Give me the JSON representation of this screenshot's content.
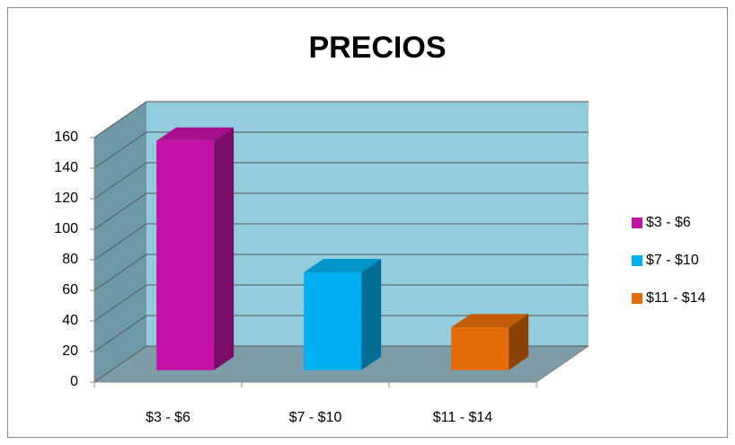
{
  "chart_data": {
    "type": "bar3d",
    "title": "PRECIOS",
    "categories": [
      "$3 - $6",
      "$7 - $10",
      "$11 - $14"
    ],
    "series": [
      {
        "name": "$3 - $6",
        "color": "#c412a9",
        "values": [
          150,
          null,
          null
        ]
      },
      {
        "name": "$7 - $10",
        "color": "#00b0f0",
        "values": [
          null,
          64,
          null
        ]
      },
      {
        "name": "$11 - $14",
        "color": "#e46c0a",
        "values": [
          null,
          null,
          28
        ]
      }
    ],
    "ylim": [
      0,
      160
    ],
    "yticks": [
      0,
      20,
      40,
      60,
      80,
      100,
      120,
      140,
      160
    ],
    "grid": true,
    "legend": "right"
  }
}
